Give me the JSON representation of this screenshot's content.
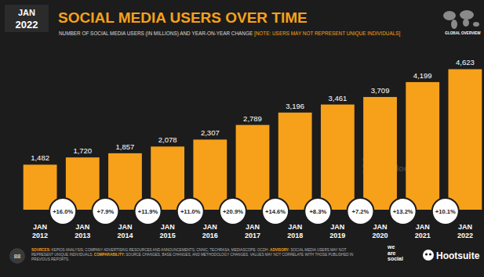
{
  "chart_data": {
    "type": "bar",
    "title": "SOCIAL MEDIA USERS OVER TIME",
    "subtitle": "NUMBER OF SOCIAL MEDIA USERS (IN MILLIONS) AND YEAR-ON-YEAR CHANGE",
    "subtitle_note": "[NOTE: USERS MAY NOT REPRESENT UNIQUE INDIVIDUALS]",
    "date_badge": [
      "JAN",
      "2022"
    ],
    "section": "GLOBAL OVERVIEW",
    "categories": [
      "JAN 2012",
      "JAN 2013",
      "JAN 2014",
      "JAN 2015",
      "JAN 2016",
      "JAN 2017",
      "JAN 2018",
      "JAN 2019",
      "JAN 2020",
      "JAN 2021",
      "JAN 2022"
    ],
    "values": [
      1482,
      1720,
      1857,
      2078,
      2307,
      2789,
      3196,
      3461,
      3709,
      4199,
      4623
    ],
    "value_labels": [
      "1,482",
      "1,720",
      "1,857",
      "2,078",
      "2,307",
      "2,789",
      "3,196",
      "3,461",
      "3,709",
      "4,199",
      "4,623"
    ],
    "data_labels": true,
    "color": "#f7a11a",
    "ylim": [
      0,
      5000
    ],
    "tick_labels": false,
    "grid": false,
    "change_values": [
      null,
      16.0,
      7.9,
      11.9,
      11.0,
      20.9,
      14.6,
      8.3,
      7.2,
      13.2,
      10.1
    ],
    "change_labels": [
      null,
      "+16.0%",
      "+7.9%",
      "+11.9%",
      "+11.0%",
      "+20.9%",
      "+14.6%",
      "+8.3%",
      "+7.2%",
      "+13.2%",
      "+10.1%"
    ],
    "footnotes": [
      [
        "SOURCES:",
        "KEPIOS ANALYSIS; COMPANY ADVERTISING RESOURCES AND ANNOUNCEMENTS; CNNIC; TECHRASA; MEDIASCOPE; OCDH."
      ],
      [
        "ADVISORY:",
        "SOCIAL MEDIA USERS MAY NOT REPRESENT UNIQUE INDIVIDUALS."
      ],
      [
        "COMPARABILITY:",
        "SOURCE CHANGES, BASE CHANGES, AND METHODOLOGY CHANGES. VALUES MAY NOT CORRELATE WITH THOSE PUBLISHED IN PREVIOUS REPORTS."
      ]
    ],
    "page_number": "88",
    "brands": [
      "we are social",
      "Hootsuite"
    ],
    "watermark": [
      "we are social",
      "Hootsuite"
    ]
  }
}
